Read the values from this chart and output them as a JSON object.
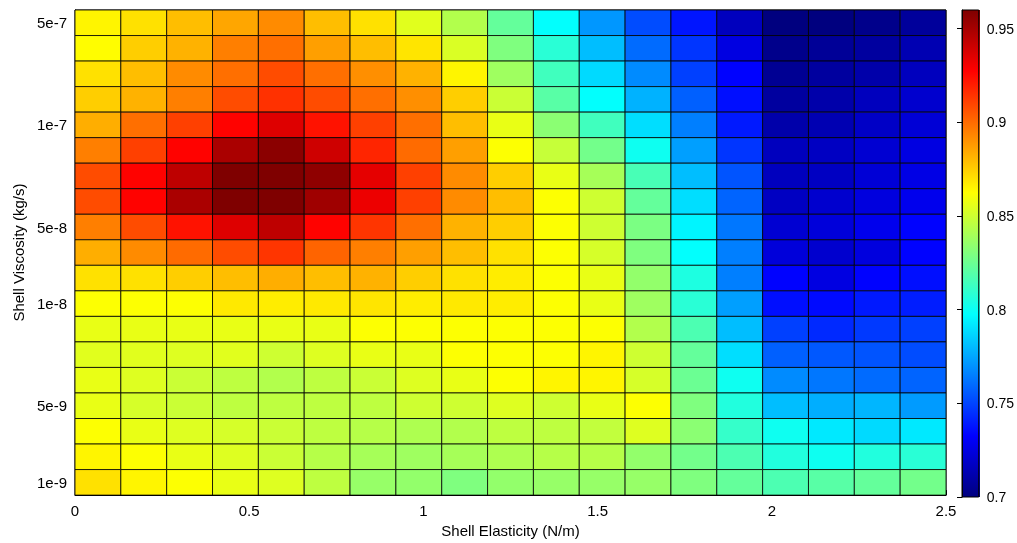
{
  "chart_data": {
    "type": "heatmap",
    "xlabel": "Shell Elasticity (N/m)",
    "ylabel": "Shell Viscosity (kg/s)",
    "xlim": [
      0,
      2.5
    ],
    "xticks": [
      0,
      0.5,
      1,
      1.5,
      2,
      2.5
    ],
    "y_categories": [
      "5e-7",
      null,
      null,
      null,
      "1e-7",
      null,
      null,
      null,
      "5e-8",
      null,
      null,
      "1e-8",
      null,
      null,
      null,
      "5e-9",
      null,
      null,
      "1e-9"
    ],
    "clim": [
      0.7,
      0.96
    ],
    "cticks": [
      0.7,
      0.75,
      0.8,
      0.85,
      0.9,
      0.95
    ],
    "cells": [
      [
        0.865,
        0.87,
        0.879,
        0.885,
        0.892,
        0.879,
        0.87,
        0.855,
        0.843,
        0.823,
        0.798,
        0.771,
        0.752,
        0.738,
        0.716,
        0.7,
        0.7,
        0.703,
        0.707
      ],
      [
        0.863,
        0.875,
        0.882,
        0.895,
        0.899,
        0.887,
        0.879,
        0.869,
        0.853,
        0.83,
        0.808,
        0.781,
        0.76,
        0.746,
        0.725,
        0.703,
        0.706,
        0.708,
        0.713
      ],
      [
        0.87,
        0.879,
        0.892,
        0.899,
        0.908,
        0.899,
        0.891,
        0.882,
        0.865,
        0.838,
        0.814,
        0.788,
        0.768,
        0.749,
        0.733,
        0.705,
        0.708,
        0.711,
        0.716
      ],
      [
        0.875,
        0.882,
        0.895,
        0.908,
        0.915,
        0.908,
        0.899,
        0.891,
        0.875,
        0.849,
        0.82,
        0.798,
        0.778,
        0.757,
        0.736,
        0.708,
        0.711,
        0.716,
        0.72
      ],
      [
        0.883,
        0.899,
        0.911,
        0.927,
        0.936,
        0.923,
        0.911,
        0.899,
        0.879,
        0.857,
        0.833,
        0.814,
        0.789,
        0.765,
        0.739,
        0.711,
        0.713,
        0.718,
        0.722
      ],
      [
        0.895,
        0.911,
        0.927,
        0.949,
        0.957,
        0.94,
        0.918,
        0.9,
        0.887,
        0.862,
        0.848,
        0.827,
        0.801,
        0.773,
        0.746,
        0.716,
        0.717,
        0.721,
        0.725
      ],
      [
        0.908,
        0.927,
        0.944,
        0.96,
        0.96,
        0.956,
        0.934,
        0.911,
        0.892,
        0.875,
        0.857,
        0.84,
        0.816,
        0.781,
        0.754,
        0.716,
        0.717,
        0.722,
        0.726
      ],
      [
        0.908,
        0.927,
        0.949,
        0.96,
        0.96,
        0.952,
        0.932,
        0.911,
        0.892,
        0.879,
        0.862,
        0.85,
        0.823,
        0.789,
        0.758,
        0.717,
        0.72,
        0.724,
        0.728
      ],
      [
        0.895,
        0.908,
        0.923,
        0.936,
        0.944,
        0.927,
        0.914,
        0.899,
        0.882,
        0.875,
        0.862,
        0.85,
        0.829,
        0.795,
        0.763,
        0.721,
        0.723,
        0.728,
        0.733
      ],
      [
        0.883,
        0.892,
        0.9,
        0.908,
        0.914,
        0.902,
        0.895,
        0.887,
        0.879,
        0.87,
        0.862,
        0.852,
        0.83,
        0.798,
        0.765,
        0.723,
        0.72,
        0.724,
        0.733
      ],
      [
        0.87,
        0.87,
        0.875,
        0.879,
        0.883,
        0.879,
        0.882,
        0.875,
        0.87,
        0.867,
        0.862,
        0.857,
        0.835,
        0.805,
        0.765,
        0.733,
        0.725,
        0.733,
        0.736
      ],
      [
        0.862,
        0.862,
        0.862,
        0.868,
        0.867,
        0.868,
        0.869,
        0.867,
        0.868,
        0.867,
        0.862,
        0.857,
        0.838,
        0.808,
        0.773,
        0.736,
        0.735,
        0.739,
        0.74
      ],
      [
        0.857,
        0.857,
        0.857,
        0.857,
        0.857,
        0.857,
        0.862,
        0.862,
        0.862,
        0.862,
        0.862,
        0.862,
        0.843,
        0.817,
        0.781,
        0.749,
        0.743,
        0.747,
        0.749
      ],
      [
        0.855,
        0.855,
        0.854,
        0.855,
        0.85,
        0.854,
        0.857,
        0.857,
        0.862,
        0.862,
        0.862,
        0.865,
        0.85,
        0.823,
        0.789,
        0.757,
        0.755,
        0.754,
        0.752
      ],
      [
        0.857,
        0.854,
        0.849,
        0.846,
        0.843,
        0.846,
        0.849,
        0.854,
        0.857,
        0.862,
        0.865,
        0.865,
        0.852,
        0.825,
        0.801,
        0.768,
        0.763,
        0.76,
        0.758
      ],
      [
        0.857,
        0.852,
        0.849,
        0.846,
        0.846,
        0.846,
        0.846,
        0.85,
        0.85,
        0.854,
        0.85,
        0.857,
        0.862,
        0.83,
        0.806,
        0.781,
        0.777,
        0.779,
        0.772
      ],
      [
        0.862,
        0.857,
        0.854,
        0.852,
        0.849,
        0.846,
        0.844,
        0.842,
        0.843,
        0.846,
        0.846,
        0.847,
        0.854,
        0.833,
        0.811,
        0.801,
        0.792,
        0.788,
        0.792
      ],
      [
        0.865,
        0.862,
        0.857,
        0.854,
        0.849,
        0.844,
        0.84,
        0.838,
        0.84,
        0.842,
        0.844,
        0.844,
        0.835,
        0.827,
        0.817,
        0.806,
        0.801,
        0.806,
        0.808
      ],
      [
        0.87,
        0.865,
        0.862,
        0.857,
        0.854,
        0.846,
        0.836,
        0.835,
        0.83,
        0.835,
        0.836,
        0.836,
        0.836,
        0.83,
        0.823,
        0.817,
        0.82,
        0.823,
        0.827
      ]
    ]
  }
}
